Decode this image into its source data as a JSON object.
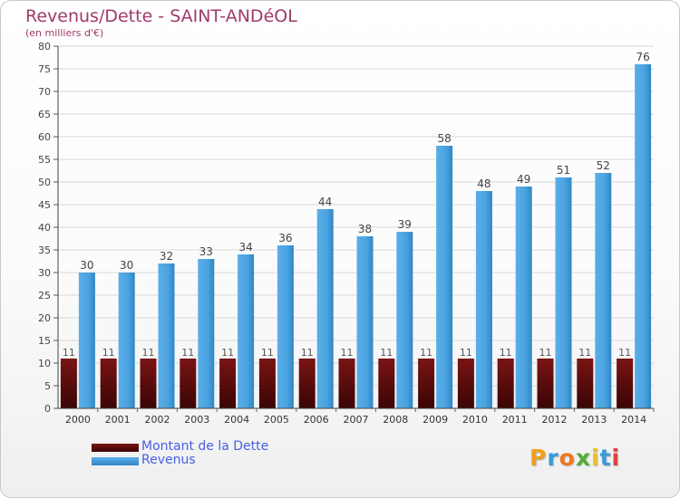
{
  "header": {
    "title": "Revenus/Dette - SAINT-ANDéOL",
    "subtitle": "(en milliers d'€)"
  },
  "logo": {
    "letters": [
      "P",
      "r",
      "o",
      "x",
      "i",
      "t",
      "i"
    ],
    "colors": [
      "#f0a020",
      "#3a9ad8",
      "#f07820",
      "#50b030",
      "#f0c020",
      "#3a9ad8",
      "#e04040"
    ]
  },
  "chart_data": {
    "type": "bar",
    "title": "Revenus/Dette - SAINT-ANDéOL",
    "subtitle": "(en milliers d'€)",
    "categories": [
      "2000",
      "2001",
      "2002",
      "2003",
      "2004",
      "2005",
      "2006",
      "2007",
      "2008",
      "2009",
      "2010",
      "2011",
      "2012",
      "2013",
      "2014"
    ],
    "series": [
      {
        "name": "Montant de la Dette",
        "color": "#6b0d0d",
        "values": [
          11,
          11,
          11,
          11,
          11,
          11,
          11,
          11,
          11,
          11,
          11,
          11,
          11,
          11,
          11
        ]
      },
      {
        "name": "Revenus",
        "color": "#4aa3e0",
        "values": [
          30,
          30,
          32,
          33,
          34,
          36,
          44,
          38,
          39,
          58,
          48,
          49,
          51,
          52,
          76
        ]
      }
    ],
    "ylim": [
      0,
      80
    ],
    "yticks": [
      0,
      5,
      10,
      15,
      20,
      25,
      30,
      35,
      40,
      45,
      50,
      55,
      60,
      65,
      70,
      75,
      80
    ],
    "grid": true,
    "legend": "bottom-left"
  }
}
